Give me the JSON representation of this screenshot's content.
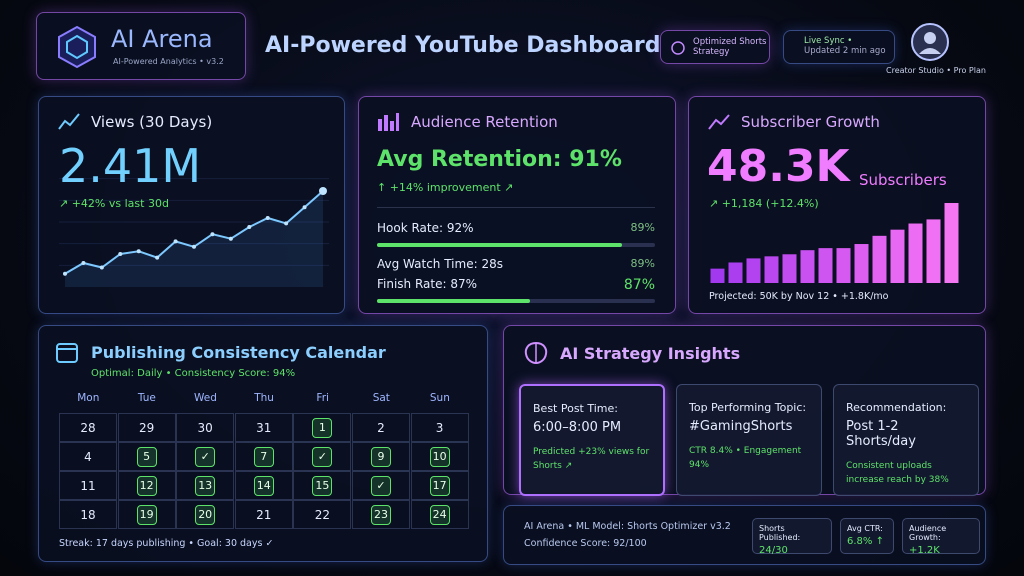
{
  "header": {
    "brand": "AI Arena",
    "subtitle": "AI-Powered Analytics • v3.2",
    "title": "AI-Powered YouTube Dashboard",
    "badge": "Optimized Shorts Strategy",
    "sync_status": "Live Sync •",
    "sync_time": "Updated 2 min ago",
    "account": "Creator Studio • Pro Plan"
  },
  "views": {
    "title": "Views (30 Days)",
    "value": "2.41M",
    "change": "↗ +42% vs last 30d",
    "trend": [
      8,
      20,
      15,
      30,
      33,
      26,
      44,
      38,
      52,
      47,
      60,
      70,
      64,
      82,
      100
    ]
  },
  "retention": {
    "title": "Audience Retention",
    "headline": "Avg Retention: 91%",
    "improvement": "↑ +14% improvement ↗",
    "rows": [
      {
        "label": "Hook Rate: 92%",
        "value": "89%",
        "progress": 88
      },
      {
        "label": "Avg Watch Time: 28s",
        "value": "89%"
      },
      {
        "label": "Finish Rate: 87%",
        "value": "87%",
        "progress": 55
      }
    ]
  },
  "subscribers": {
    "title": "Subscriber Growth",
    "value": "48.3K",
    "unit": "Subscribers",
    "change": "↗ +1,184 (+12.4%)",
    "bars": [
      14,
      20,
      24,
      26,
      28,
      32,
      34,
      34,
      38,
      46,
      52,
      58,
      62,
      78
    ],
    "projection": "Projected: 50K by Nov 12 • +1.8K/mo"
  },
  "calendar": {
    "title": "Publishing Consistency Calendar",
    "subtitle": "Optimal: Daily • Consistency Score: 94%",
    "weekdays": [
      "Mon",
      "Tue",
      "Wed",
      "Thu",
      "Fri",
      "Sat",
      "Sun"
    ],
    "weeks": [
      [
        {
          "label": "28",
          "state": "plain"
        },
        {
          "label": "29",
          "state": "plain"
        },
        {
          "label": "30",
          "state": "plain"
        },
        {
          "label": "31",
          "state": "plain"
        },
        {
          "label": "1",
          "state": "published"
        },
        {
          "label": "2",
          "state": "plain"
        },
        {
          "label": "3",
          "state": "plain"
        }
      ],
      [
        {
          "label": "4",
          "state": "plain"
        },
        {
          "label": "5",
          "state": "published"
        },
        {
          "label": "✓",
          "state": "check"
        },
        {
          "label": "7",
          "state": "published"
        },
        {
          "label": "✓",
          "state": "check"
        },
        {
          "label": "9",
          "state": "published"
        },
        {
          "label": "10",
          "state": "published"
        }
      ],
      [
        {
          "label": "11",
          "state": "plain"
        },
        {
          "label": "12",
          "state": "published"
        },
        {
          "label": "13",
          "state": "published"
        },
        {
          "label": "14",
          "state": "published"
        },
        {
          "label": "15",
          "state": "published"
        },
        {
          "label": "✓",
          "state": "check"
        },
        {
          "label": "17",
          "state": "published"
        }
      ],
      [
        {
          "label": "18",
          "state": "plain"
        },
        {
          "label": "19",
          "state": "published"
        },
        {
          "label": "20",
          "state": "published"
        },
        {
          "label": "21",
          "state": "plain"
        },
        {
          "label": "22",
          "state": "plain"
        },
        {
          "label": "23",
          "state": "published"
        },
        {
          "label": "24",
          "state": "published"
        }
      ]
    ],
    "footer": "Streak: 17 days publishing • Goal: 30 days ✓"
  },
  "insights": {
    "title": "AI Strategy Insights",
    "cards": [
      {
        "heading": "Best Post Time:",
        "value": "6:00–8:00 PM",
        "note": "Predicted +23% views for Shorts ↗"
      },
      {
        "heading": "Top Performing Topic:",
        "value": "#GamingShorts",
        "note": "CTR 8.4% • Engagement 94%"
      },
      {
        "heading": "Recommendation:",
        "value": "Post 1-2 Shorts/day",
        "note": "Consistent uploads increase reach by 38%"
      }
    ]
  },
  "model": {
    "name": "AI Arena • ML Model: Shorts Optimizer v3.2",
    "confidence": "Confidence Score: 92/100",
    "stats": [
      {
        "label": "Shorts Published:",
        "value": "24/30"
      },
      {
        "label": "Avg CTR:",
        "value": "6.8% ↑"
      },
      {
        "label": "Audience Growth:",
        "value": "+1.2K"
      }
    ]
  }
}
